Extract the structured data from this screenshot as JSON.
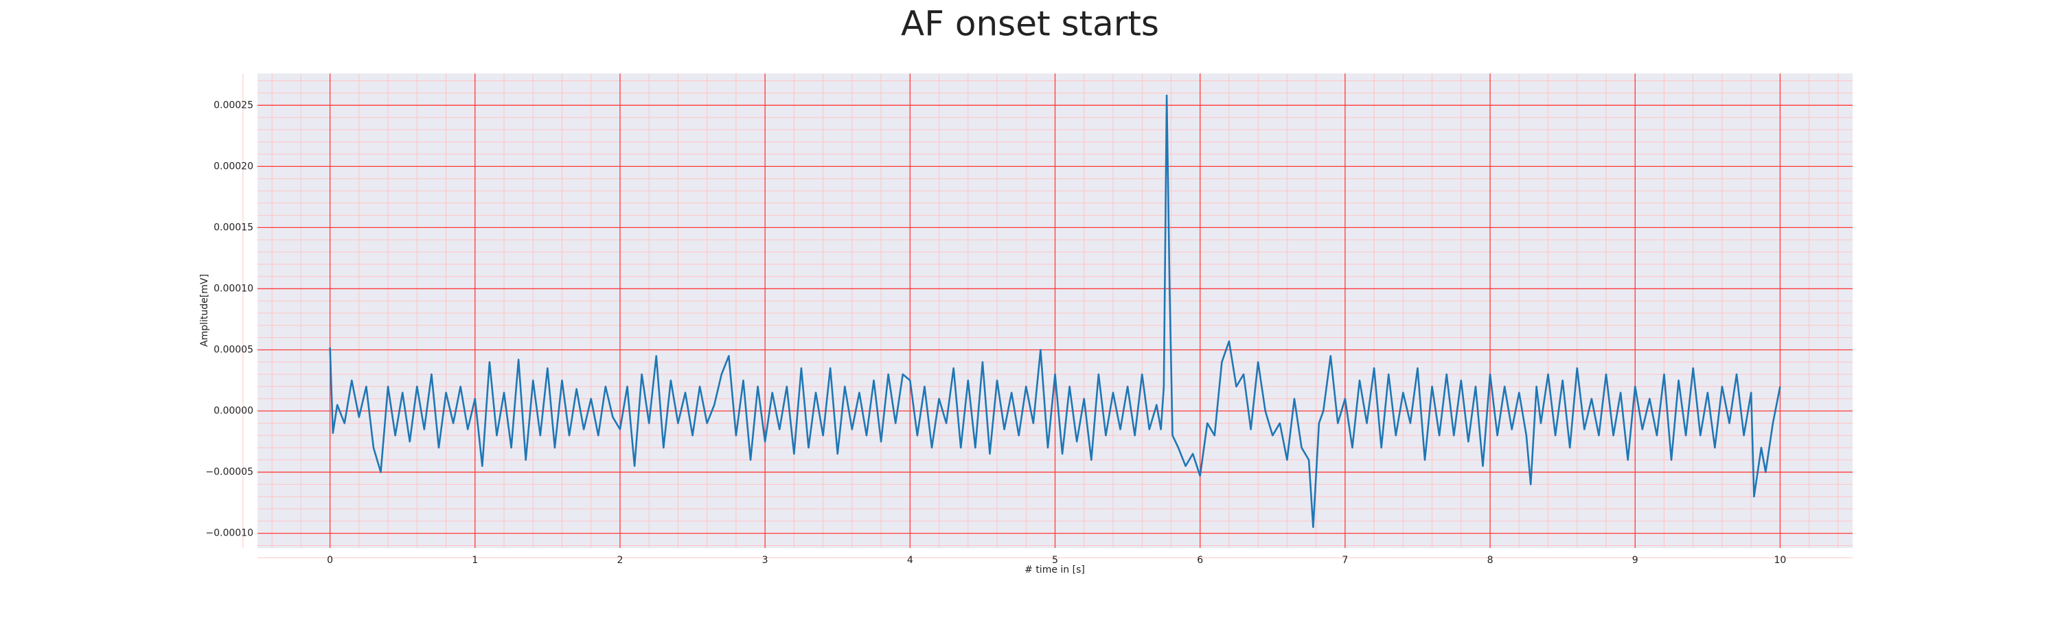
{
  "chart_data": {
    "type": "line",
    "title": "AF onset starts",
    "xlabel": "# time in [s]",
    "ylabel": "Amplitude[mV]",
    "xlim": [
      -0.5,
      10.5
    ],
    "xticks": [
      0,
      1,
      2,
      3,
      4,
      5,
      6,
      7,
      8,
      9,
      10
    ],
    "ylim": [
      -0.000112,
      0.000276
    ],
    "yticks": [
      {
        "value": -0.0001,
        "label": "−0.00010"
      },
      {
        "value": -5e-05,
        "label": "−0.00005"
      },
      {
        "value": 0,
        "label": "0.00000"
      },
      {
        "value": 5e-05,
        "label": "0.00005"
      },
      {
        "value": 0.0001,
        "label": "0.00010"
      },
      {
        "value": 0.00015,
        "label": "0.00015"
      },
      {
        "value": 0.0002,
        "label": "0.00020"
      },
      {
        "value": 0.00025,
        "label": "0.00025"
      }
    ],
    "grid": true,
    "background": "#eaeaf2",
    "grid_color": "#ff3b3b",
    "minor_grid_color": "#ffc4c4",
    "series": [
      {
        "color": "#1f77b4",
        "x": [
          0,
          0.02,
          0.05,
          0.1,
          0.15,
          0.2,
          0.25,
          0.3,
          0.35,
          0.4,
          0.45,
          0.5,
          0.55,
          0.6,
          0.65,
          0.7,
          0.75,
          0.8,
          0.85,
          0.9,
          0.95,
          1.0,
          1.05,
          1.1,
          1.15,
          1.2,
          1.25,
          1.3,
          1.35,
          1.4,
          1.45,
          1.5,
          1.55,
          1.6,
          1.65,
          1.7,
          1.75,
          1.8,
          1.85,
          1.9,
          1.95,
          2.0,
          2.05,
          2.1,
          2.15,
          2.2,
          2.25,
          2.3,
          2.35,
          2.4,
          2.45,
          2.5,
          2.55,
          2.6,
          2.65,
          2.7,
          2.75,
          2.8,
          2.85,
          2.9,
          2.95,
          3.0,
          3.05,
          3.1,
          3.15,
          3.2,
          3.25,
          3.3,
          3.35,
          3.4,
          3.45,
          3.5,
          3.55,
          3.6,
          3.65,
          3.7,
          3.75,
          3.8,
          3.85,
          3.9,
          3.95,
          4.0,
          4.05,
          4.1,
          4.15,
          4.2,
          4.25,
          4.3,
          4.35,
          4.4,
          4.45,
          4.5,
          4.55,
          4.6,
          4.65,
          4.7,
          4.75,
          4.8,
          4.85,
          4.9,
          4.95,
          5.0,
          5.05,
          5.1,
          5.15,
          5.2,
          5.25,
          5.3,
          5.35,
          5.4,
          5.45,
          5.5,
          5.55,
          5.6,
          5.65,
          5.7,
          5.73,
          5.75,
          5.77,
          5.79,
          5.81,
          5.85,
          5.9,
          5.95,
          6.0,
          6.05,
          6.1,
          6.15,
          6.2,
          6.25,
          6.3,
          6.35,
          6.4,
          6.45,
          6.5,
          6.55,
          6.6,
          6.65,
          6.7,
          6.75,
          6.78,
          6.82,
          6.85,
          6.9,
          6.95,
          7.0,
          7.05,
          7.1,
          7.15,
          7.2,
          7.25,
          7.3,
          7.35,
          7.4,
          7.45,
          7.5,
          7.55,
          7.6,
          7.65,
          7.7,
          7.75,
          7.8,
          7.85,
          7.9,
          7.95,
          8.0,
          8.05,
          8.1,
          8.15,
          8.2,
          8.25,
          8.28,
          8.32,
          8.35,
          8.4,
          8.45,
          8.5,
          8.55,
          8.6,
          8.65,
          8.7,
          8.75,
          8.8,
          8.85,
          8.9,
          8.95,
          9.0,
          9.05,
          9.1,
          9.15,
          9.2,
          9.25,
          9.3,
          9.35,
          9.4,
          9.45,
          9.5,
          9.55,
          9.6,
          9.65,
          9.7,
          9.75,
          9.8,
          9.82,
          9.87,
          9.9,
          9.95,
          10.0
        ],
        "values": [
          5.2e-05,
          -1.8e-05,
          5e-06,
          -1e-05,
          2.5e-05,
          -5e-06,
          2e-05,
          -3e-05,
          -5e-05,
          2e-05,
          -2e-05,
          1.5e-05,
          -2.5e-05,
          2e-05,
          -1.5e-05,
          3e-05,
          -3e-05,
          1.5e-05,
          -1e-05,
          2e-05,
          -1.5e-05,
          1e-05,
          -4.5e-05,
          4e-05,
          -2e-05,
          1.5e-05,
          -3e-05,
          4.2e-05,
          -4e-05,
          2.5e-05,
          -2e-05,
          3.5e-05,
          -3e-05,
          2.5e-05,
          -2e-05,
          1.8e-05,
          -1.5e-05,
          1e-05,
          -2e-05,
          2e-05,
          -5e-06,
          -1.5e-05,
          2e-05,
          -4.5e-05,
          3e-05,
          -1e-05,
          4.5e-05,
          -3e-05,
          2.5e-05,
          -1e-05,
          1.5e-05,
          -2e-05,
          2e-05,
          -1e-05,
          5e-06,
          3e-05,
          4.5e-05,
          -2e-05,
          2.5e-05,
          -4e-05,
          2e-05,
          -2.5e-05,
          1.5e-05,
          -1.5e-05,
          2e-05,
          -3.5e-05,
          3.5e-05,
          -3e-05,
          1.5e-05,
          -2e-05,
          3.5e-05,
          -3.5e-05,
          2e-05,
          -1.5e-05,
          1.5e-05,
          -2e-05,
          2.5e-05,
          -2.5e-05,
          3e-05,
          -1e-05,
          3e-05,
          2.5e-05,
          -2e-05,
          2e-05,
          -3e-05,
          1e-05,
          -1e-05,
          3.5e-05,
          -3e-05,
          2.5e-05,
          -3e-05,
          4e-05,
          -3.5e-05,
          2.5e-05,
          -1.5e-05,
          1.5e-05,
          -2e-05,
          2e-05,
          -1e-05,
          5e-05,
          -3e-05,
          3e-05,
          -3.5e-05,
          2e-05,
          -2.5e-05,
          1e-05,
          -4e-05,
          3e-05,
          -2e-05,
          1.5e-05,
          -1.5e-05,
          2e-05,
          -2e-05,
          3e-05,
          -1.5e-05,
          5e-06,
          -1.5e-05,
          2e-05,
          0.000258,
          0.0001,
          -2e-05,
          -3e-05,
          -4.5e-05,
          -3.5e-05,
          -5.3e-05,
          -1e-05,
          -2e-05,
          4e-05,
          5.7e-05,
          2e-05,
          3e-05,
          -1.5e-05,
          4e-05,
          0,
          -2e-05,
          -1e-05,
          -4e-05,
          1e-05,
          -3e-05,
          -4e-05,
          -9.5e-05,
          -1e-05,
          0,
          4.5e-05,
          -1e-05,
          1e-05,
          -3e-05,
          2.5e-05,
          -1e-05,
          3.5e-05,
          -3e-05,
          3e-05,
          -2e-05,
          1.5e-05,
          -1e-05,
          3.5e-05,
          -4e-05,
          2e-05,
          -2e-05,
          3e-05,
          -2e-05,
          2.5e-05,
          -2.5e-05,
          2e-05,
          -4.5e-05,
          3e-05,
          -2e-05,
          2e-05,
          -1.5e-05,
          1.5e-05,
          -2e-05,
          -6e-05,
          2e-05,
          -1e-05,
          3e-05,
          -2e-05,
          2.5e-05,
          -3e-05,
          3.5e-05,
          -1.5e-05,
          1e-05,
          -2e-05,
          3e-05,
          -2e-05,
          1.5e-05,
          -4e-05,
          2e-05,
          -1.5e-05,
          1e-05,
          -2e-05,
          3e-05,
          -4e-05,
          2.5e-05,
          -2e-05,
          3.5e-05,
          -2e-05,
          1.5e-05,
          -3e-05,
          2e-05,
          -1e-05,
          3e-05,
          -2e-05,
          1.5e-05,
          -7e-05,
          -3e-05,
          -5e-05,
          -1e-05,
          2e-05
        ]
      }
    ]
  }
}
